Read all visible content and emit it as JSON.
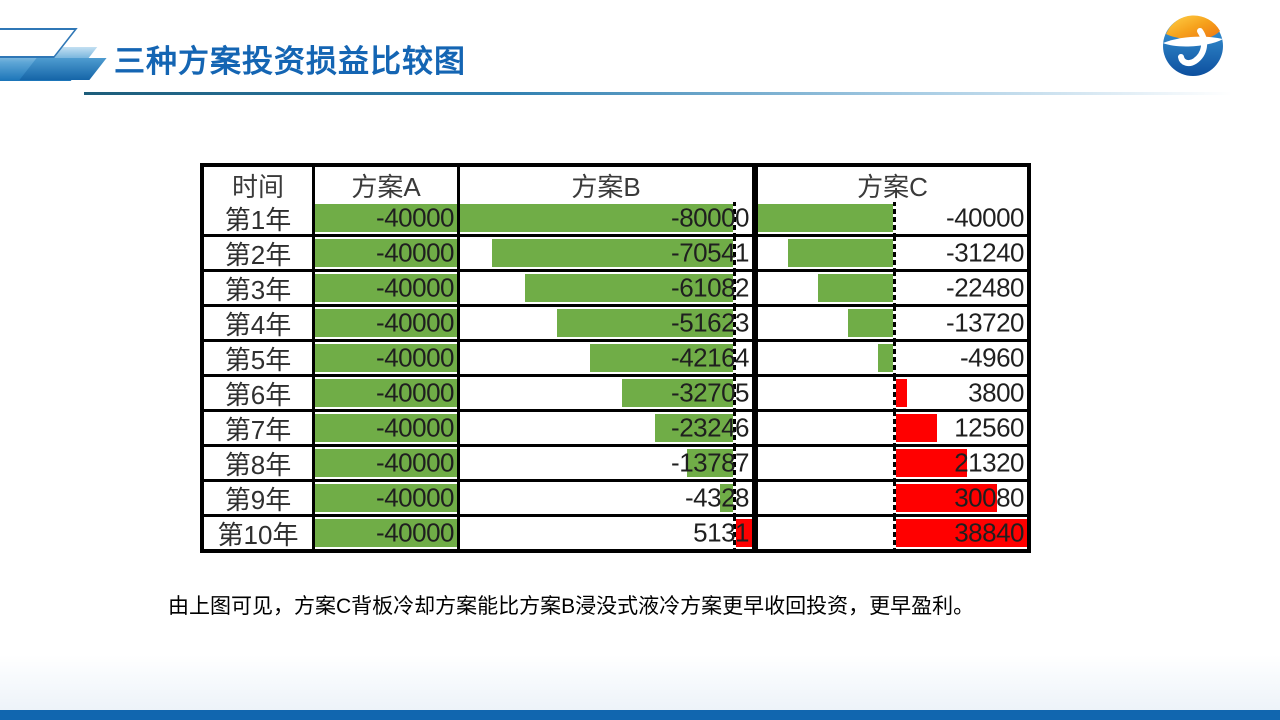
{
  "slide": {
    "title": "三种方案投资损益比较图",
    "note": "由上图可见，方案C背板冷却方案能比方案B浸没式液冷方案更早收回投资，更早盈利。"
  },
  "colors": {
    "accent_blue": "#1465b3",
    "footer_blue": "#1166af",
    "bar_green": "#70AD47",
    "bar_red": "#FF0000",
    "table_border": "#000000"
  },
  "chart_data": {
    "type": "table",
    "title": "三种方案投资损益比较图",
    "columns": [
      "时间",
      "方案A",
      "方案B",
      "方案C"
    ],
    "row_labels": [
      "第1年",
      "第2年",
      "第3年",
      "第4年",
      "第5年",
      "第6年",
      "第7年",
      "第8年",
      "第9年",
      "第10年"
    ],
    "series": [
      {
        "name": "方案A",
        "values": [
          -40000,
          -40000,
          -40000,
          -40000,
          -40000,
          -40000,
          -40000,
          -40000,
          -40000,
          -40000
        ],
        "negative_color": "#70AD47",
        "positive_color": "#FF0000",
        "show_axis": false
      },
      {
        "name": "方案B",
        "values": [
          -80000,
          -70541,
          -61082,
          -51623,
          -42164,
          -32705,
          -23246,
          -13787,
          -4328,
          5131
        ],
        "negative_color": "#70AD47",
        "positive_color": "#FF0000",
        "show_axis": true
      },
      {
        "name": "方案C",
        "values": [
          -40000,
          -31240,
          -22480,
          -13720,
          -4960,
          3800,
          12560,
          21320,
          30080,
          38840
        ],
        "negative_color": "#70AD47",
        "positive_color": "#FF0000",
        "show_axis": true
      }
    ],
    "bar_style": "excel-in-cell-data-bars-with-dashed-zero-axis",
    "legend": "none"
  }
}
